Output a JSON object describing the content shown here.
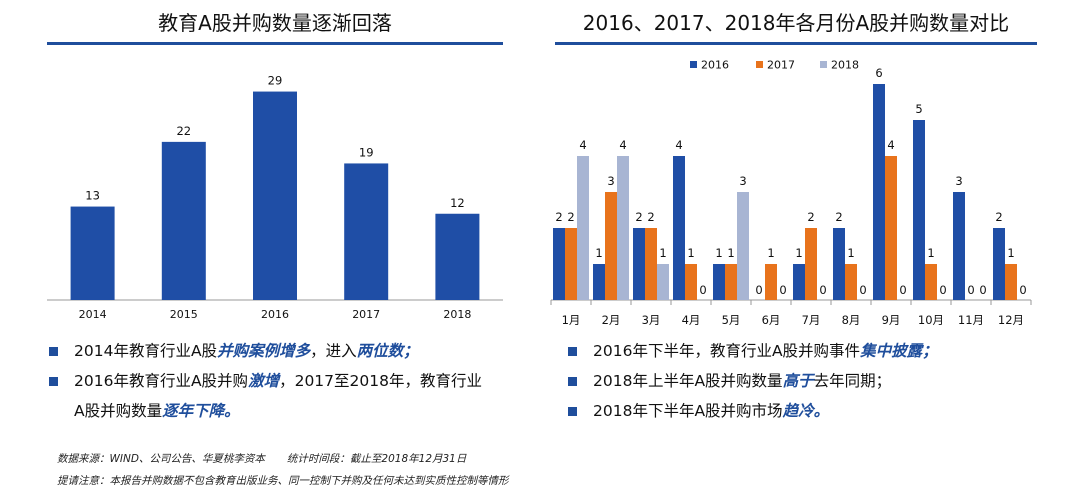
{
  "left_panel": {
    "title": "教育A股并购数量逐渐回落",
    "bullets": [
      {
        "lines": [
          [
            {
              "t": "2014年教育行业A股"
            },
            {
              "t": "并购案例增多",
              "hl": true
            },
            {
              "t": "，进入"
            },
            {
              "t": "两位数；",
              "hl": true
            }
          ]
        ]
      },
      {
        "lines": [
          [
            {
              "t": "2016年教育行业A股并购"
            },
            {
              "t": "激增",
              "hl": true
            },
            {
              "t": "，2017至2018年，教育行业"
            }
          ],
          [
            {
              "t": "A股并购数量"
            },
            {
              "t": "逐年下降。",
              "hl": true
            }
          ]
        ]
      }
    ]
  },
  "right_panel": {
    "title": "2016、2017、2018年各月份A股并购数量对比",
    "bullets": [
      {
        "lines": [
          [
            {
              "t": "2016年下半年，教育行业A股并购事件"
            },
            {
              "t": "集中披露；",
              "hl": true
            }
          ]
        ]
      },
      {
        "lines": [
          [
            {
              "t": "2018年上半年A股并购数量"
            },
            {
              "t": "高于",
              "hl": true
            },
            {
              "t": "去年同期；"
            }
          ]
        ]
      },
      {
        "lines": [
          [
            {
              "t": "2018年下半年A股并购市场"
            },
            {
              "t": "趋冷。",
              "hl": true
            }
          ]
        ]
      }
    ]
  },
  "footnotes": {
    "source": "数据来源：WIND、公司公告、华夏桃李资本",
    "period": "统计时间段：截止至2018年12月31日",
    "notice": "提请注意：本报告并购数据不包含教育出版业务、同一控制下并购及任何未达到实质性控制等情形"
  },
  "colors": {
    "primary": "#1f4e9c",
    "s2016": "#1f4ea6",
    "s2017": "#e8731c",
    "s2018": "#a8b5d3",
    "accent_rule": "#1f4e9c"
  },
  "chart_data": [
    {
      "type": "bar",
      "categories": [
        "2014",
        "2015",
        "2016",
        "2017",
        "2018"
      ],
      "values": [
        13,
        22,
        29,
        19,
        12
      ],
      "title": "教育A股并购数量逐渐回落",
      "ylim": [
        0,
        32
      ],
      "data_labels": true
    },
    {
      "type": "bar",
      "categories": [
        "1月",
        "2月",
        "3月",
        "4月",
        "5月",
        "6月",
        "7月",
        "8月",
        "9月",
        "10月",
        "11月",
        "12月"
      ],
      "series": [
        {
          "name": "2016",
          "values": [
            2,
            1,
            2,
            4,
            1,
            0,
            1,
            2,
            6,
            5,
            3,
            2
          ]
        },
        {
          "name": "2017",
          "values": [
            2,
            3,
            2,
            1,
            1,
            1,
            2,
            1,
            4,
            1,
            0,
            1
          ]
        },
        {
          "name": "2018",
          "values": [
            4,
            4,
            1,
            0,
            3,
            0,
            0,
            0,
            0,
            0,
            0,
            0
          ]
        }
      ],
      "title": "2016、2017、2018年各月份A股并购数量对比",
      "legend": "top-center",
      "ylim": [
        0,
        6
      ],
      "data_labels": true
    }
  ]
}
